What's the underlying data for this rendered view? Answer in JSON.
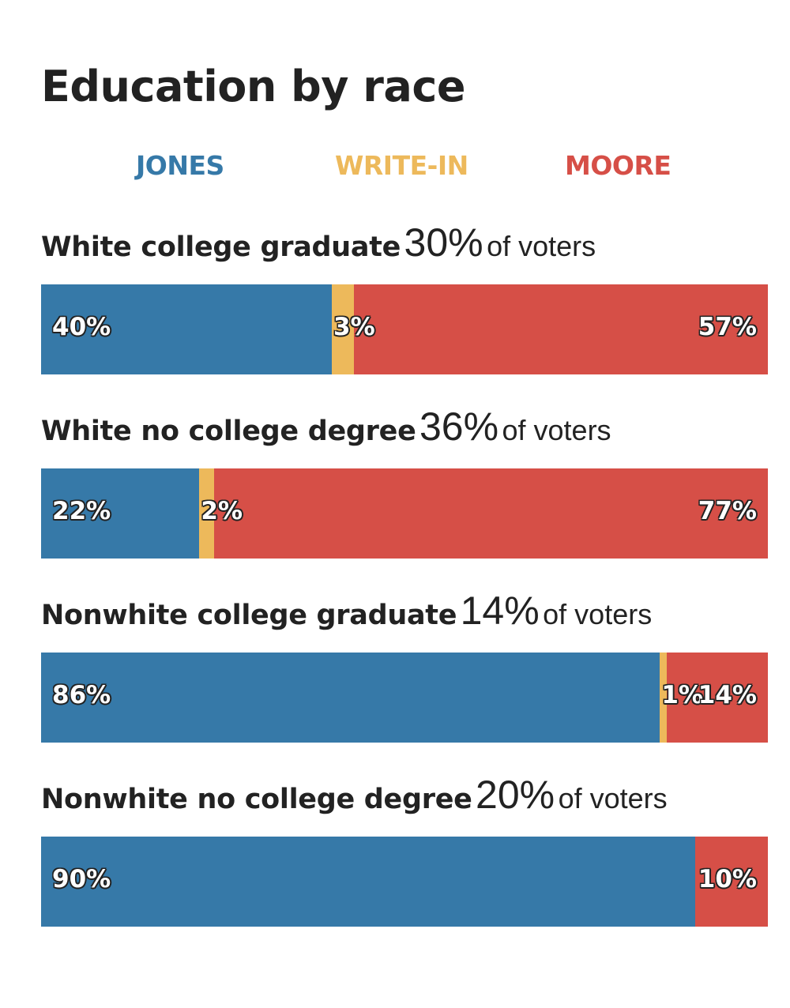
{
  "title": "Education by race",
  "legend": [
    {
      "label": "JONES",
      "color": "#3679A8"
    },
    {
      "label": "WRITE-IN",
      "color": "#EDB95B"
    },
    {
      "label": "MOORE",
      "color": "#D64F47"
    }
  ],
  "share_suffix": "of voters",
  "chart_data": {
    "type": "bar",
    "orientation": "horizontal",
    "stacked": true,
    "normalized": true,
    "title": "Education by race",
    "categories": [
      "White college graduate",
      "White no college degree",
      "Nonwhite college graduate",
      "Nonwhite no college degree"
    ],
    "category_shares": [
      "30%",
      "36%",
      "14%",
      "20%"
    ],
    "series": [
      {
        "name": "JONES",
        "values": [
          40,
          22,
          86,
          90
        ],
        "labels": [
          "40%",
          "22%",
          "86%",
          "90%"
        ],
        "color": "#3679A8"
      },
      {
        "name": "WRITE-IN",
        "values": [
          3,
          2,
          1,
          0
        ],
        "labels": [
          "3%",
          "2%",
          "1%",
          ""
        ],
        "color": "#EDB95B"
      },
      {
        "name": "MOORE",
        "values": [
          57,
          77,
          14,
          10
        ],
        "labels": [
          "57%",
          "77%",
          "14%",
          "10%"
        ],
        "color": "#D64F47"
      }
    ],
    "xlim": [
      0,
      100
    ],
    "grid": false,
    "legend_position": "top"
  }
}
